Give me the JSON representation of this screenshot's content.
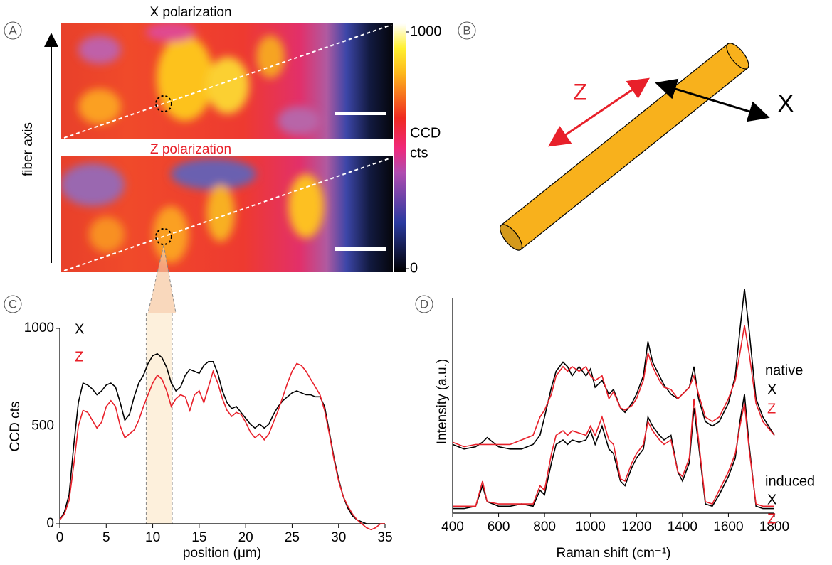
{
  "panel_labels": [
    "A",
    "B",
    "C",
    "D"
  ],
  "panel_a": {
    "title_x": "X polarization",
    "title_z": "Z polarization",
    "axis_label": "fiber axis",
    "colorbar": {
      "label_lines": [
        "CCD",
        "cts"
      ],
      "lim": [
        0,
        1000
      ],
      "ticks": [
        0,
        1000
      ]
    }
  },
  "panel_b": {
    "labels": [
      "Z",
      "X"
    ]
  },
  "panel_d_annotations": [
    "native",
    "induced"
  ],
  "chart_data": [
    {
      "type": "line",
      "x_label": "position (μm)",
      "y_label": "CCD cts",
      "x": [
        0,
        0.5,
        1,
        1.5,
        2,
        2.5,
        3,
        3.5,
        4,
        4.5,
        5,
        5.5,
        6,
        6.5,
        7,
        7.5,
        8,
        8.5,
        9,
        9.5,
        10,
        10.5,
        11,
        11.5,
        12,
        12.5,
        13,
        13.5,
        14,
        14.5,
        15,
        15.5,
        16,
        16.5,
        17,
        17.5,
        18,
        18.5,
        19,
        19.5,
        20,
        20.5,
        21,
        21.5,
        22,
        22.5,
        23,
        23.5,
        24,
        24.5,
        25,
        25.5,
        26,
        26.5,
        27,
        27.5,
        28,
        28.5,
        29,
        29.5,
        30,
        30.5,
        31,
        31.5,
        32,
        32.5,
        33,
        33.5,
        34,
        34.5,
        35
      ],
      "series": [
        {
          "name": "X",
          "color": "#000000",
          "values": [
            20,
            60,
            150,
            400,
            620,
            720,
            710,
            690,
            660,
            680,
            710,
            720,
            700,
            620,
            530,
            560,
            650,
            720,
            760,
            820,
            860,
            870,
            850,
            800,
            720,
            680,
            700,
            760,
            790,
            780,
            770,
            810,
            830,
            830,
            770,
            680,
            620,
            590,
            600,
            570,
            540,
            510,
            490,
            510,
            490,
            510,
            560,
            600,
            630,
            650,
            670,
            680,
            670,
            660,
            660,
            650,
            650,
            600,
            470,
            340,
            230,
            140,
            80,
            40,
            20,
            10,
            0,
            0,
            0,
            0,
            0
          ]
        },
        {
          "name": "Z",
          "color": "#e8202a",
          "values": [
            20,
            50,
            120,
            300,
            500,
            580,
            570,
            530,
            490,
            520,
            600,
            630,
            600,
            500,
            440,
            460,
            480,
            530,
            600,
            660,
            720,
            760,
            740,
            680,
            600,
            640,
            660,
            650,
            580,
            660,
            680,
            620,
            700,
            780,
            720,
            640,
            580,
            550,
            570,
            560,
            520,
            470,
            440,
            460,
            430,
            460,
            520,
            580,
            650,
            720,
            780,
            820,
            810,
            780,
            740,
            700,
            660,
            580,
            460,
            330,
            220,
            140,
            90,
            50,
            20,
            0,
            -20,
            -30,
            -20,
            0,
            0
          ]
        }
      ],
      "highlight": [
        9.3,
        12.1
      ],
      "xlim": [
        0,
        35
      ],
      "xticks": [
        0,
        5,
        10,
        15,
        20,
        25,
        30,
        35
      ],
      "ylim": [
        0,
        1000
      ],
      "yticks": [
        0,
        500,
        1000
      ]
    },
    {
      "type": "line",
      "x_label": "Raman shift (cm⁻¹)",
      "y_label": "Intensity (a.u.)",
      "x": [
        400,
        450,
        500,
        530,
        550,
        600,
        650,
        700,
        750,
        780,
        800,
        830,
        850,
        880,
        900,
        920,
        950,
        980,
        1000,
        1020,
        1050,
        1080,
        1100,
        1130,
        1150,
        1180,
        1200,
        1230,
        1250,
        1270,
        1300,
        1320,
        1350,
        1380,
        1400,
        1430,
        1450,
        1470,
        1500,
        1530,
        1560,
        1600,
        1630,
        1650,
        1670,
        1690,
        1720,
        1750,
        1800
      ],
      "series": [
        {
          "name": "X",
          "color": "#000000",
          "values": [
            30,
            28,
            29,
            31,
            33,
            29,
            28,
            28,
            30,
            34,
            42,
            55,
            62,
            66,
            64,
            60,
            64,
            60,
            63,
            55,
            58,
            52,
            54,
            46,
            44,
            48,
            52,
            60,
            75,
            66,
            60,
            56,
            52,
            50,
            52,
            55,
            64,
            50,
            40,
            38,
            40,
            48,
            60,
            80,
            98,
            80,
            50,
            42,
            34
          ]
        },
        {
          "name": "Z",
          "color": "#e8202a",
          "values": [
            31,
            29,
            30,
            30,
            30,
            30,
            30,
            32,
            34,
            42,
            45,
            52,
            60,
            64,
            62,
            64,
            62,
            64,
            60,
            58,
            60,
            50,
            53,
            46,
            45,
            47,
            50,
            58,
            70,
            64,
            58,
            55,
            54,
            50,
            52,
            55,
            60,
            52,
            42,
            40,
            42,
            50,
            58,
            70,
            82,
            70,
            48,
            40,
            34
          ]
        },
        {
          "name": "X",
          "color": "#000000",
          "values": [
            2,
            2,
            3,
            12,
            5,
            3,
            3,
            4,
            3,
            10,
            8,
            22,
            30,
            32,
            30,
            32,
            31,
            32,
            36,
            30,
            38,
            28,
            26,
            14,
            12,
            20,
            24,
            28,
            42,
            38,
            34,
            32,
            34,
            18,
            14,
            22,
            46,
            30,
            4,
            3,
            8,
            16,
            24,
            40,
            52,
            30,
            3,
            2,
            2
          ]
        },
        {
          "name": "Z",
          "color": "#e8202a",
          "values": [
            3,
            3,
            3,
            14,
            5,
            4,
            4,
            4,
            4,
            12,
            10,
            26,
            34,
            36,
            34,
            36,
            35,
            34,
            38,
            34,
            42,
            32,
            30,
            15,
            14,
            22,
            26,
            30,
            40,
            36,
            32,
            30,
            32,
            18,
            16,
            24,
            50,
            32,
            5,
            4,
            10,
            18,
            26,
            38,
            48,
            28,
            4,
            3,
            3
          ]
        }
      ],
      "xlim": [
        400,
        1800
      ],
      "xticks": [
        400,
        600,
        800,
        1000,
        1200,
        1400,
        1600,
        1800
      ],
      "ylim": [
        0,
        100
      ]
    }
  ]
}
